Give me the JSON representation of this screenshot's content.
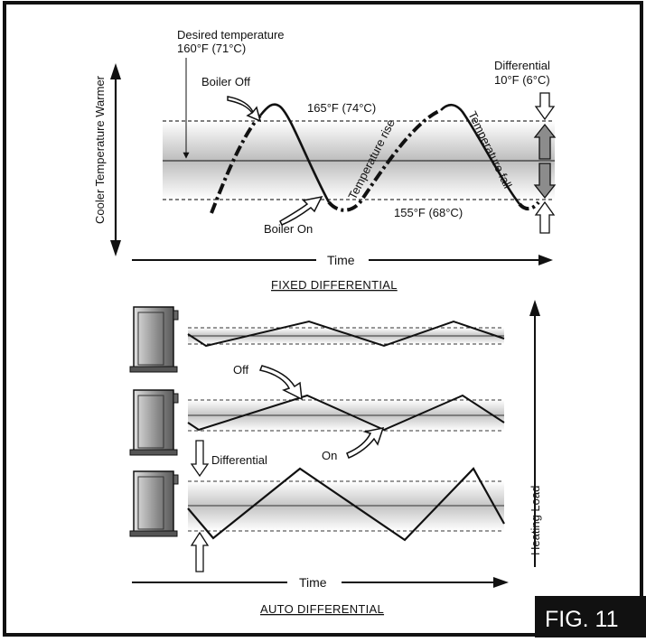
{
  "fixed": {
    "desired_line1": "Desired temperature",
    "desired_line2": "160°F (71°C)",
    "boiler_off": "Boiler Off",
    "boiler_on": "Boiler On",
    "high_temp": "165°F (74°C)",
    "low_temp": "155°F (68°C)",
    "differential_line1": "Differential",
    "differential_line2": "10°F (6°C)",
    "temp_rise": "Temperature rise",
    "temp_fall": "Temperature fall",
    "y_axis": "Cooler Temperature Warmer",
    "x_axis": "Time",
    "title": "FIXED DIFFERENTIAL"
  },
  "auto": {
    "off": "Off",
    "on": "On",
    "differential": "Differential",
    "heating_load": "Heating Load",
    "x_axis": "Time",
    "title": "AUTO DIFFERENTIAL"
  },
  "fig_label": "FIG. 11"
}
